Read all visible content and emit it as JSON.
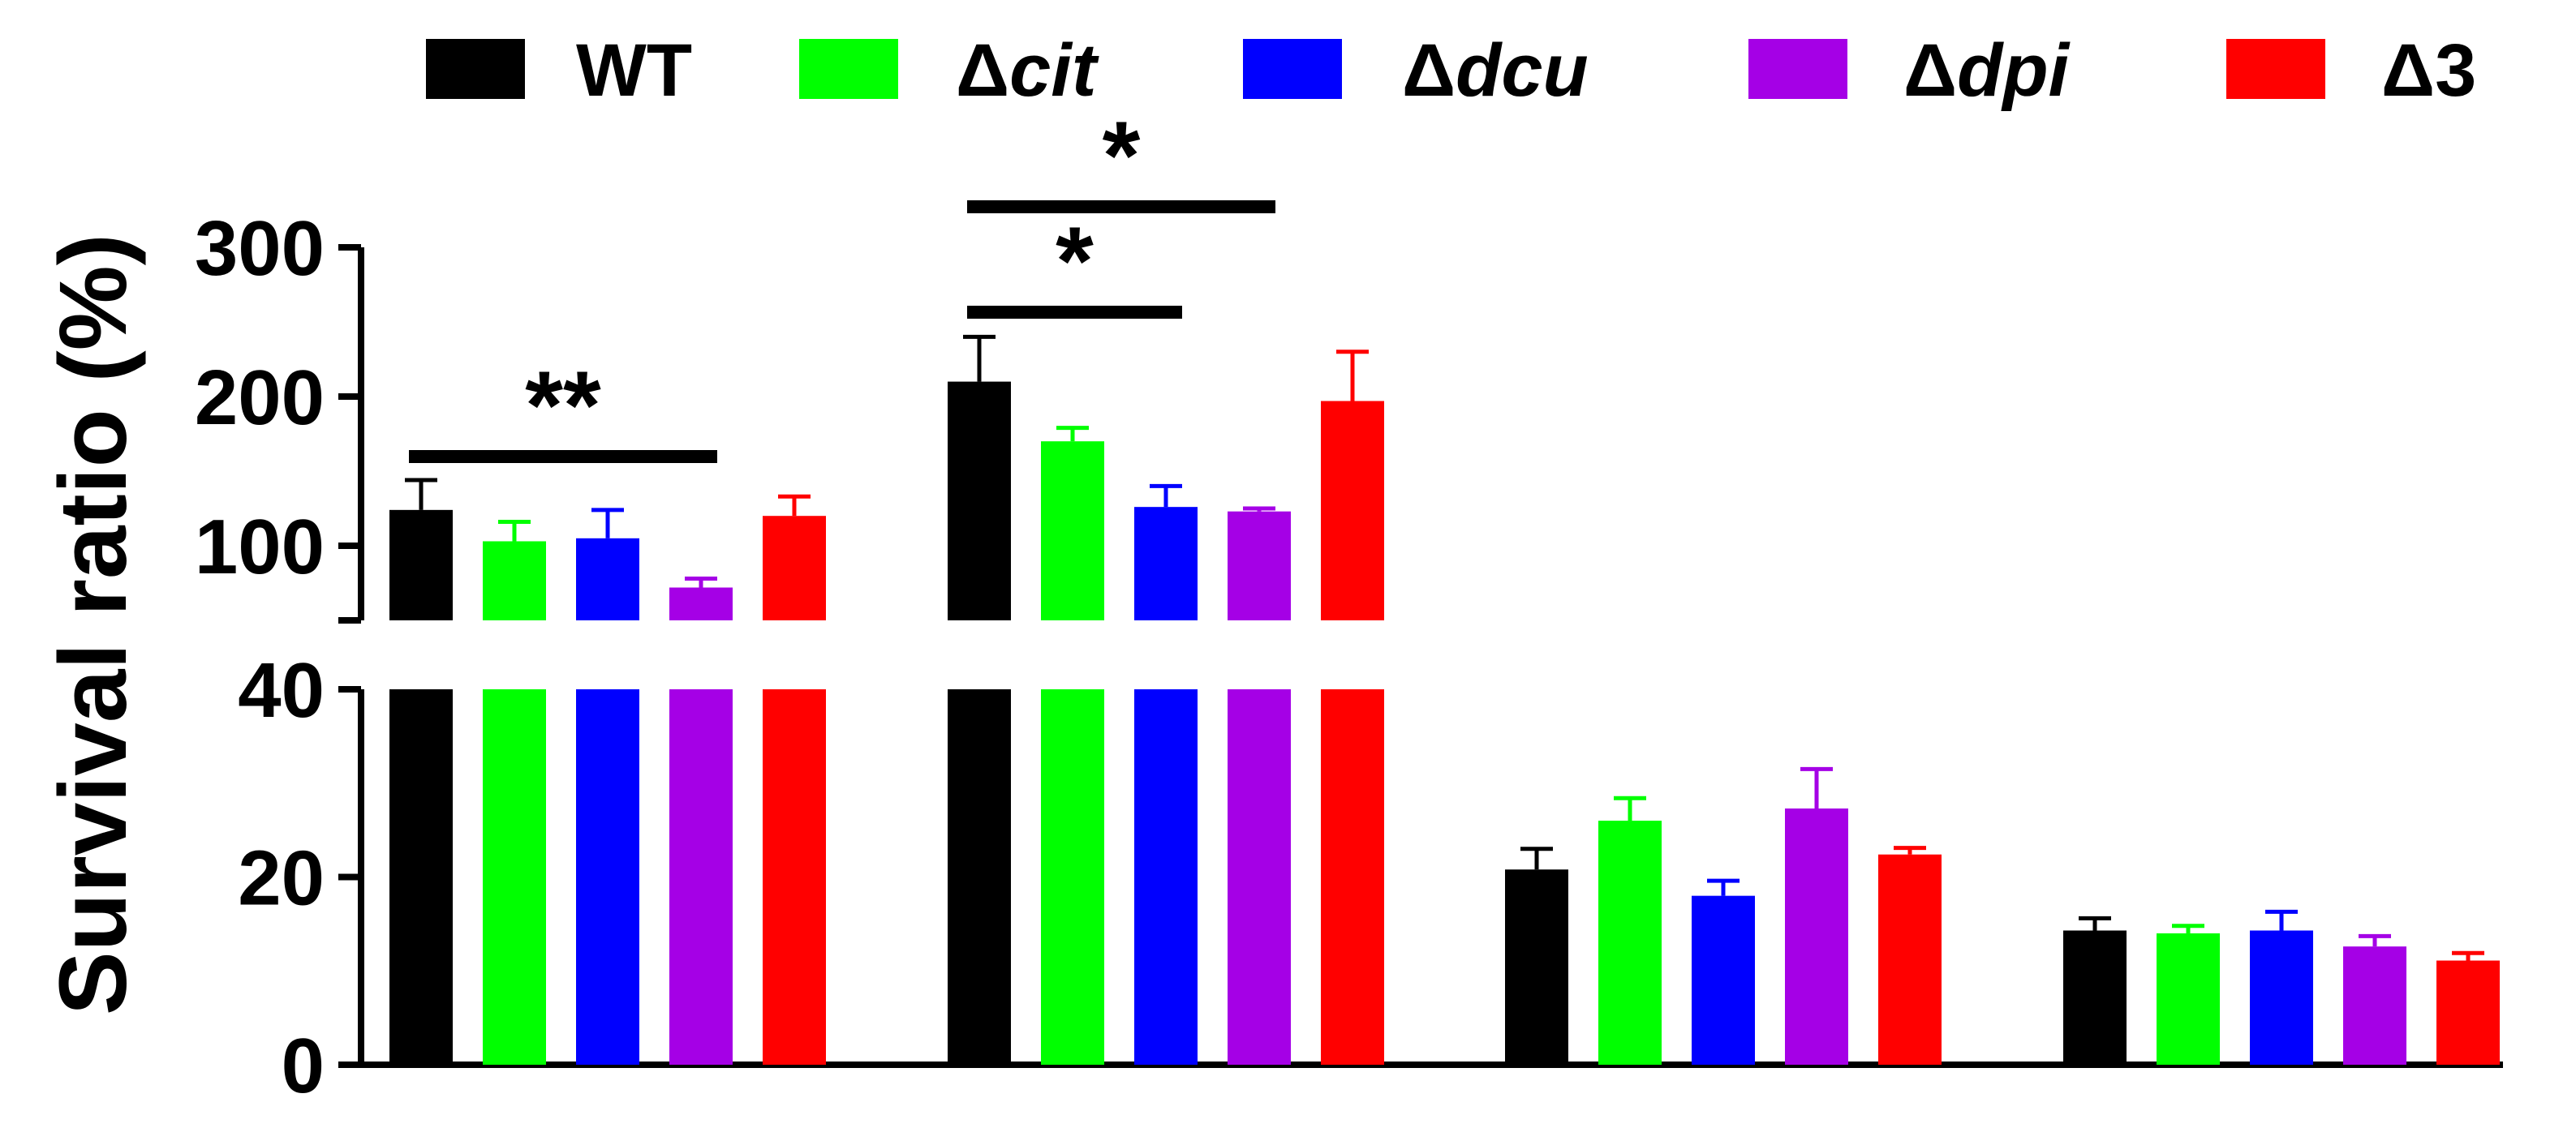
{
  "chart_data": {
    "type": "bar",
    "ylabel": "Survival ratio (%)",
    "xlabel": "",
    "broken_axis": {
      "lower_range": [
        0,
        40
      ],
      "upper_range": [
        50,
        300
      ],
      "lower_ticks": [
        "0",
        "20",
        "40"
      ],
      "upper_ticks": [
        "100",
        "200",
        "300"
      ]
    },
    "legend": {
      "placement": "top",
      "entries": [
        {
          "prefix": "",
          "name": "WT",
          "italic": false
        },
        {
          "prefix": "Δ",
          "name": "cit",
          "italic": true
        },
        {
          "prefix": "Δ",
          "name": "dcu",
          "italic": true
        },
        {
          "prefix": "Δ",
          "name": "dpi",
          "italic": true
        },
        {
          "prefix": "Δ",
          "name": "3",
          "italic": false
        }
      ]
    },
    "series": [
      {
        "name": "WT",
        "color": "#000000",
        "values": [
          124,
          210,
          20.8,
          14.3
        ],
        "errors": [
          20,
          30,
          2.2,
          1.3
        ]
      },
      {
        "name": "Δcit",
        "color": "#00FF00",
        "values": [
          103,
          170,
          26.0,
          14.0
        ],
        "errors": [
          13,
          9,
          2.4,
          0.8
        ]
      },
      {
        "name": "Δdcu",
        "color": "#0000FF",
        "values": [
          105,
          126,
          18.0,
          14.3
        ],
        "errors": [
          19,
          14,
          1.6,
          2.0
        ]
      },
      {
        "name": "Δdpi",
        "color": "#A500E6",
        "values": [
          72,
          123,
          27.3,
          12.6
        ],
        "errors": [
          6,
          2,
          4.2,
          1.1
        ]
      },
      {
        "name": "Δ3",
        "color": "#FF0000",
        "values": [
          120,
          197,
          22.4,
          11.1
        ],
        "errors": [
          13,
          33,
          0.7,
          0.8
        ]
      }
    ],
    "significance": [
      {
        "group": 0,
        "from_series": 0,
        "to_series": 3,
        "label": "**",
        "level": 0
      },
      {
        "group": 1,
        "from_series": 0,
        "to_series": 2,
        "label": "*",
        "level": 0
      },
      {
        "group": 1,
        "from_series": 0,
        "to_series": 3,
        "label": "*",
        "level": 1
      }
    ],
    "grid": false
  }
}
